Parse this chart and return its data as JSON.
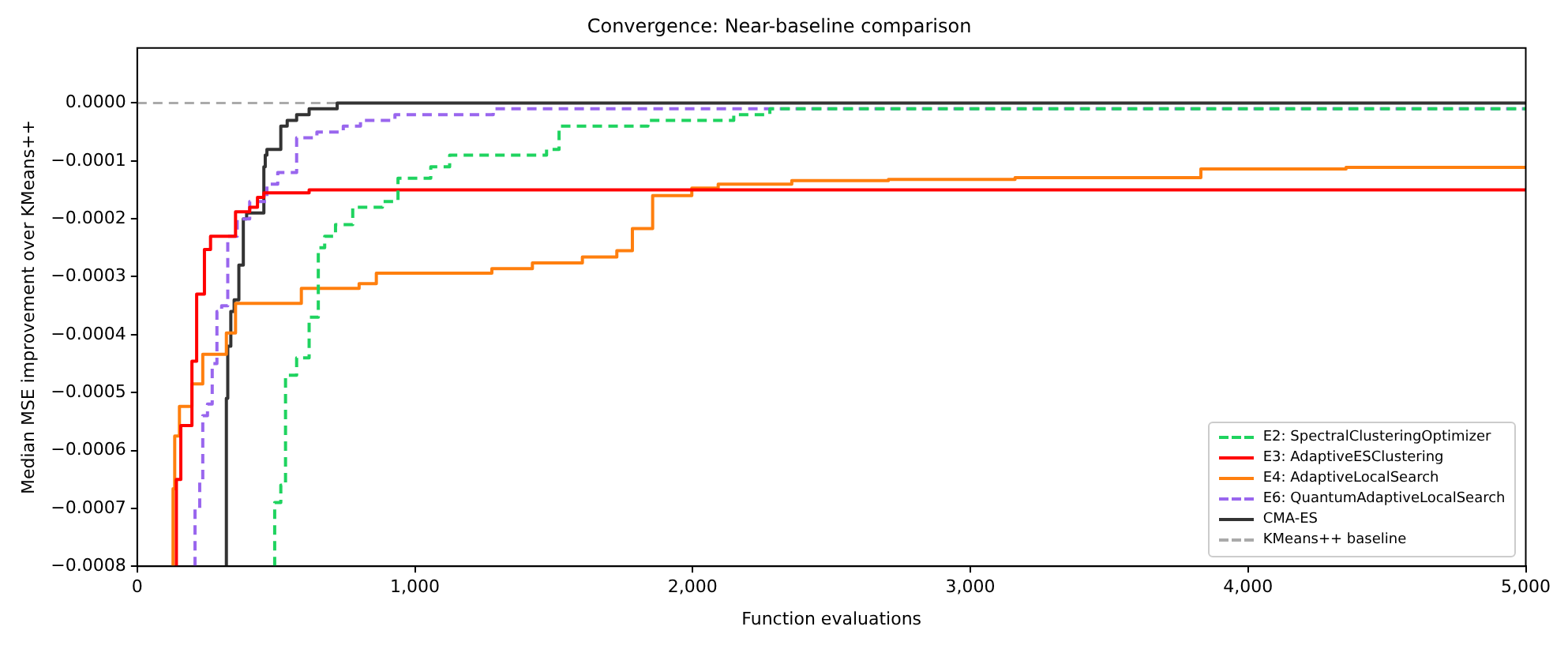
{
  "chart_data": {
    "type": "step",
    "title": "Convergence: Near-baseline comparison",
    "xlabel": "Function evaluations",
    "ylabel": "Median MSE improvement over KMeans++",
    "xlim": [
      0,
      5000
    ],
    "ylim": [
      -0.0008,
      9.5e-05
    ],
    "xticks": [
      0,
      {
        "value": 1000,
        "label": "1,000"
      },
      {
        "value": 2000,
        "label": "2,000"
      },
      {
        "value": 3000,
        "label": "3,000"
      },
      {
        "value": 4000,
        "label": "4,000"
      },
      {
        "value": 5000,
        "label": "5,000"
      }
    ],
    "yticks": [
      {
        "value": 0,
        "label": "0.0000"
      },
      {
        "value": -0.0001,
        "label": "−0.0001"
      },
      {
        "value": -0.0002,
        "label": "−0.0002"
      },
      {
        "value": -0.0003,
        "label": "−0.0003"
      },
      {
        "value": -0.0004,
        "label": "−0.0004"
      },
      {
        "value": -0.0005,
        "label": "−0.0005"
      },
      {
        "value": -0.0006,
        "label": "−0.0006"
      },
      {
        "value": -0.0007,
        "label": "−0.0007"
      },
      {
        "value": -0.0008,
        "label": "−0.0008"
      }
    ],
    "grid": false,
    "legend": "bottom right",
    "marker": "none",
    "series": [
      {
        "name": "E2: SpectralClusteringOptimizer",
        "color": "#1fd35f",
        "line_style": "dashed",
        "x": [
          495,
          517,
          534,
          574,
          619,
          652,
          675,
          714,
          776,
          883,
          939,
          996,
          1057,
          1125,
          1474,
          1519,
          1839,
          2148,
          2278,
          2728,
          5000
        ],
        "values": [
          -0.0008,
          -0.00069,
          -0.00066,
          -0.00047,
          -0.00044,
          -0.00037,
          -0.00025,
          -0.00023,
          -0.00021,
          -0.00018,
          -0.00017,
          -0.00013,
          -0.00013,
          -0.00011,
          -9e-05,
          -8e-05,
          -4e-05,
          -3e-05,
          -2e-05,
          -1e-05,
          -1e-05
        ]
      },
      {
        "name": "E3: AdaptiveESClustering",
        "color": "#ff0000",
        "line_style": "solid",
        "x": [
          141,
          157,
          197,
          214,
          242,
          264,
          354,
          405,
          433,
          456,
          619,
          5000
        ],
        "values": [
          -0.0008,
          -0.00065,
          -0.000557,
          -0.000446,
          -0.00033,
          -0.000253,
          -0.00023,
          -0.000188,
          -0.00018,
          -0.000163,
          -0.000155,
          -0.00015
        ]
      },
      {
        "name": "E4: AdaptiveLocalSearch",
        "color": "#ff7f0e",
        "line_style": "solid",
        "x": [
          129,
          135,
          152,
          197,
          236,
          321,
          354,
          591,
          799,
          861,
          1277,
          1423,
          1603,
          1727,
          1783,
          1856,
          1997,
          2092,
          2357,
          2705,
          3161,
          3830,
          4353,
          4567,
          5000
        ],
        "values": [
          -0.0008,
          -0.000666,
          -0.000575,
          -0.000524,
          -0.000485,
          -0.000434,
          -0.000397,
          -0.000346,
          -0.00032,
          -0.000312,
          -0.000294,
          -0.000286,
          -0.000276,
          -0.000266,
          -0.000255,
          -0.000217,
          -0.00016,
          -0.000147,
          -0.00014,
          -0.000134,
          -0.000132,
          -0.000129,
          -0.000114,
          -0.000111,
          -0.000111
        ]
      },
      {
        "name": "E6: QuantumAdaptiveLocalSearch",
        "color": "#9966ee",
        "line_style": "dashed",
        "x": [
          208,
          225,
          236,
          253,
          270,
          287,
          304,
          326,
          360,
          405,
          467,
          506,
          574,
          647,
          742,
          804,
          928,
          1057,
          1282,
          2092,
          4950,
          5000
        ],
        "values": [
          -0.0008,
          -0.0007,
          -0.00065,
          -0.00054,
          -0.00052,
          -0.00045,
          -0.00036,
          -0.00035,
          -0.00023,
          -0.0002,
          -0.00017,
          -0.00014,
          -0.00012,
          -6e-05,
          -5e-05,
          -4e-05,
          -3e-05,
          -2e-05,
          -2e-05,
          -1e-05,
          -1e-05,
          -1e-05
        ]
      },
      {
        "name": "CMA-ES",
        "color": "#333333",
        "line_style": "solid",
        "x": [
          321,
          326,
          337,
          349,
          366,
          382,
          394,
          405,
          456,
          461,
          467,
          517,
          540,
          574,
          619,
          664,
          720,
          816,
          928,
          5000
        ],
        "values": [
          -0.0008,
          -0.00051,
          -0.00042,
          -0.00036,
          -0.00034,
          -0.00028,
          -0.0002,
          -0.00019,
          -0.00019,
          -0.00011,
          -9e-05,
          -8e-05,
          -4e-05,
          -3e-05,
          -2e-05,
          -1e-05,
          -1e-05,
          0,
          0,
          0
        ]
      }
    ],
    "ref_lines": [
      {
        "axis": "y",
        "value": 0,
        "label": "KMeans++ baseline",
        "color": "#aaaaaa",
        "line_style": "dashed"
      }
    ]
  }
}
